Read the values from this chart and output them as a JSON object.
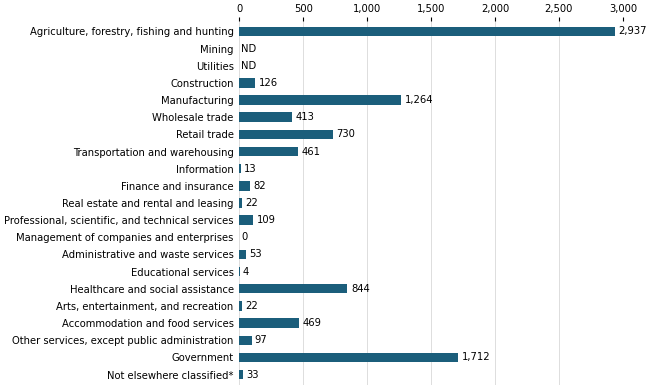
{
  "categories": [
    "Agriculture, forestry, fishing and hunting",
    "Mining",
    "Utilities",
    "Construction",
    "Manufacturing",
    "Wholesale trade",
    "Retail trade",
    "Transportation and warehousing",
    "Information",
    "Finance and insurance",
    "Real estate and rental and leasing",
    "Professional, scientific, and technical services",
    "Management of companies and enterprises",
    "Administrative and waste services",
    "Educational services",
    "Healthcare and social assistance",
    "Arts, entertainment, and recreation",
    "Accommodation and food services",
    "Other services, except public administration",
    "Government",
    "Not elsewhere classified*"
  ],
  "values": [
    2937,
    null,
    null,
    126,
    1264,
    413,
    730,
    461,
    13,
    82,
    22,
    109,
    0,
    53,
    4,
    844,
    22,
    469,
    97,
    1712,
    33
  ],
  "nd_indices": [
    1,
    2
  ],
  "bar_color": "#1b5e7b",
  "label_color": "#000000",
  "background_color": "#ffffff",
  "xlim": [
    0,
    3000
  ],
  "xticks": [
    0,
    500,
    1000,
    1500,
    2000,
    2500,
    3000
  ],
  "xtick_labels": [
    "0",
    "500",
    "1,000",
    "1,500",
    "2,000",
    "2,500",
    "3,000"
  ],
  "bar_height": 0.55,
  "figsize": [
    6.5,
    3.89
  ],
  "dpi": 100,
  "label_fontsize": 7.2,
  "value_fontsize": 7.2
}
